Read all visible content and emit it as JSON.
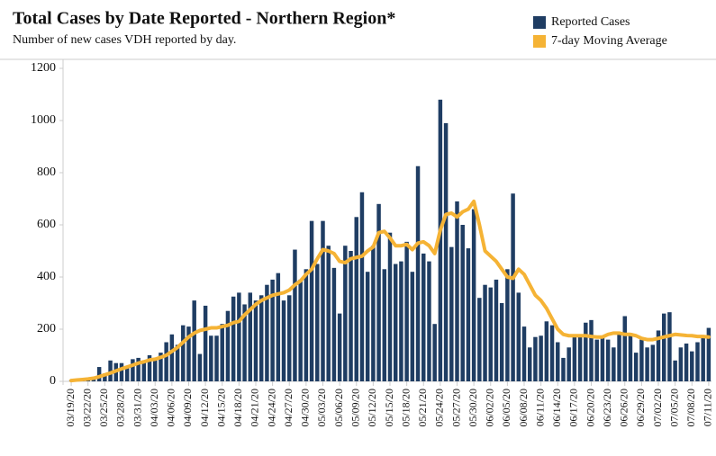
{
  "chart_data": {
    "type": "bar-line",
    "title": "Total Cases by Date Reported - Northern Region*",
    "subtitle": "Number of new cases VDH reported by day.",
    "legend": "top-right",
    "categories": [
      "03/19/20",
      null,
      null,
      "03/22/20",
      null,
      null,
      "03/25/20",
      null,
      null,
      "03/28/20",
      null,
      null,
      "03/31/20",
      null,
      null,
      "04/03/20",
      null,
      null,
      "04/06/20",
      null,
      null,
      "04/09/20",
      null,
      null,
      "04/12/20",
      null,
      null,
      "04/15/20",
      null,
      null,
      "04/18/20",
      null,
      null,
      "04/21/20",
      null,
      null,
      "04/24/20",
      null,
      null,
      "04/27/20",
      null,
      null,
      "04/30/20",
      null,
      null,
      "05/03/20",
      null,
      null,
      "05/06/20",
      null,
      null,
      "05/09/20",
      null,
      null,
      "05/12/20",
      null,
      null,
      "05/15/20",
      null,
      null,
      "05/18/20",
      null,
      null,
      "05/21/20",
      null,
      null,
      "05/24/20",
      null,
      null,
      "05/27/20",
      null,
      null,
      "05/30/20",
      null,
      null,
      "06/02/20",
      null,
      null,
      "06/05/20",
      null,
      null,
      "06/08/20",
      null,
      null,
      "06/11/20",
      null,
      null,
      "06/14/20",
      null,
      null,
      "06/17/20",
      null,
      null,
      "06/20/20",
      null,
      null,
      "06/23/20",
      null,
      null,
      "06/26/20",
      null,
      null,
      "06/29/20",
      null,
      null,
      "07/02/20",
      null,
      null,
      "07/05/20",
      null,
      null,
      "07/08/20",
      null,
      null,
      "07/11/20"
    ],
    "series": [
      {
        "name": "Reported Cases",
        "kind": "bar",
        "color": "#1f3d63",
        "values": [
          5,
          8,
          10,
          12,
          15,
          55,
          30,
          80,
          70,
          70,
          55,
          85,
          90,
          80,
          100,
          90,
          110,
          150,
          180,
          140,
          215,
          210,
          310,
          105,
          290,
          175,
          175,
          220,
          270,
          325,
          340,
          295,
          340,
          310,
          330,
          370,
          390,
          415,
          310,
          330,
          505,
          390,
          430,
          615,
          450,
          615,
          520,
          435,
          260,
          520,
          500,
          630,
          725,
          420,
          520,
          680,
          430,
          570,
          450,
          460,
          535,
          420,
          825,
          490,
          460,
          220,
          1080,
          990,
          515,
          690,
          600,
          510,
          660,
          320,
          370,
          360,
          390,
          300,
          430,
          720,
          340,
          210,
          130,
          170,
          175,
          230,
          215,
          150,
          90,
          130,
          175,
          175,
          225,
          235,
          160,
          175,
          160,
          130,
          180,
          250,
          185,
          110,
          160,
          130,
          140,
          195,
          260,
          265,
          80,
          130,
          145,
          115,
          150,
          175,
          205
        ]
      },
      {
        "name": "7-day Moving Average",
        "kind": "line",
        "color": "#f5b335",
        "values": [
          3,
          5,
          7,
          9,
          12,
          18,
          25,
          32,
          40,
          48,
          55,
          62,
          70,
          75,
          82,
          85,
          92,
          100,
          115,
          130,
          150,
          170,
          185,
          195,
          200,
          205,
          205,
          210,
          215,
          225,
          230,
          255,
          275,
          295,
          310,
          320,
          330,
          335,
          340,
          350,
          370,
          385,
          410,
          430,
          470,
          505,
          500,
          490,
          460,
          455,
          470,
          475,
          480,
          500,
          515,
          570,
          575,
          550,
          520,
          520,
          525,
          505,
          530,
          535,
          520,
          490,
          580,
          640,
          645,
          630,
          650,
          660,
          690,
          600,
          500,
          480,
          460,
          430,
          400,
          395,
          430,
          410,
          370,
          330,
          310,
          280,
          240,
          200,
          180,
          175,
          175,
          175,
          175,
          172,
          170,
          170,
          180,
          185,
          185,
          180,
          180,
          175,
          165,
          160,
          160,
          165,
          170,
          175,
          180,
          178,
          176,
          175,
          172,
          172,
          170
        ]
      }
    ],
    "ylim": [
      0,
      1200
    ],
    "yticks": [
      0,
      200,
      400,
      600,
      800,
      1000,
      1200
    ]
  }
}
